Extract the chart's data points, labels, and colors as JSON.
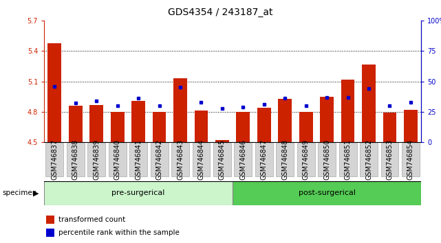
{
  "title": "GDS4354 / 243187_at",
  "categories": [
    "GSM746837",
    "GSM746838",
    "GSM746839",
    "GSM746840",
    "GSM746841",
    "GSM746842",
    "GSM746843",
    "GSM746844",
    "GSM746845",
    "GSM746846",
    "GSM746847",
    "GSM746848",
    "GSM746849",
    "GSM746850",
    "GSM746851",
    "GSM746852",
    "GSM746853",
    "GSM746854"
  ],
  "transformed_count": [
    5.48,
    4.86,
    4.87,
    4.8,
    4.91,
    4.8,
    5.13,
    4.81,
    4.52,
    4.8,
    4.84,
    4.93,
    4.8,
    4.95,
    5.12,
    5.27,
    4.79,
    4.82
  ],
  "percentile_rank": [
    46,
    32,
    34,
    30,
    36,
    30,
    45,
    33,
    28,
    29,
    31,
    36,
    30,
    37,
    37,
    44,
    30,
    33
  ],
  "bar_color": "#cc2200",
  "dot_color": "#0000cc",
  "ymin": 4.5,
  "ymax": 5.7,
  "yticks": [
    4.5,
    4.8,
    5.1,
    5.4,
    5.7
  ],
  "ytick_labels": [
    "4.5",
    "4.8",
    "5.1",
    "5.4",
    "5.7"
  ],
  "y2min": 0,
  "y2max": 100,
  "y2ticks": [
    0,
    25,
    50,
    75,
    100
  ],
  "y2tick_labels": [
    "0",
    "25",
    "50",
    "75",
    "100%"
  ],
  "pre_surgical_count": 9,
  "pre_surgical_label": "pre-surgerical",
  "post_surgical_label": "post-surgerical",
  "specimen_label": "specimen",
  "legend_count_label": "transformed count",
  "legend_pct_label": "percentile rank within the sample",
  "pre_color": "#ccf5cc",
  "post_color": "#55cc55",
  "xtick_bg": "#d4d4d4",
  "bar_width": 0.65,
  "title_fontsize": 10,
  "tick_fontsize": 7,
  "label_fontsize": 8
}
